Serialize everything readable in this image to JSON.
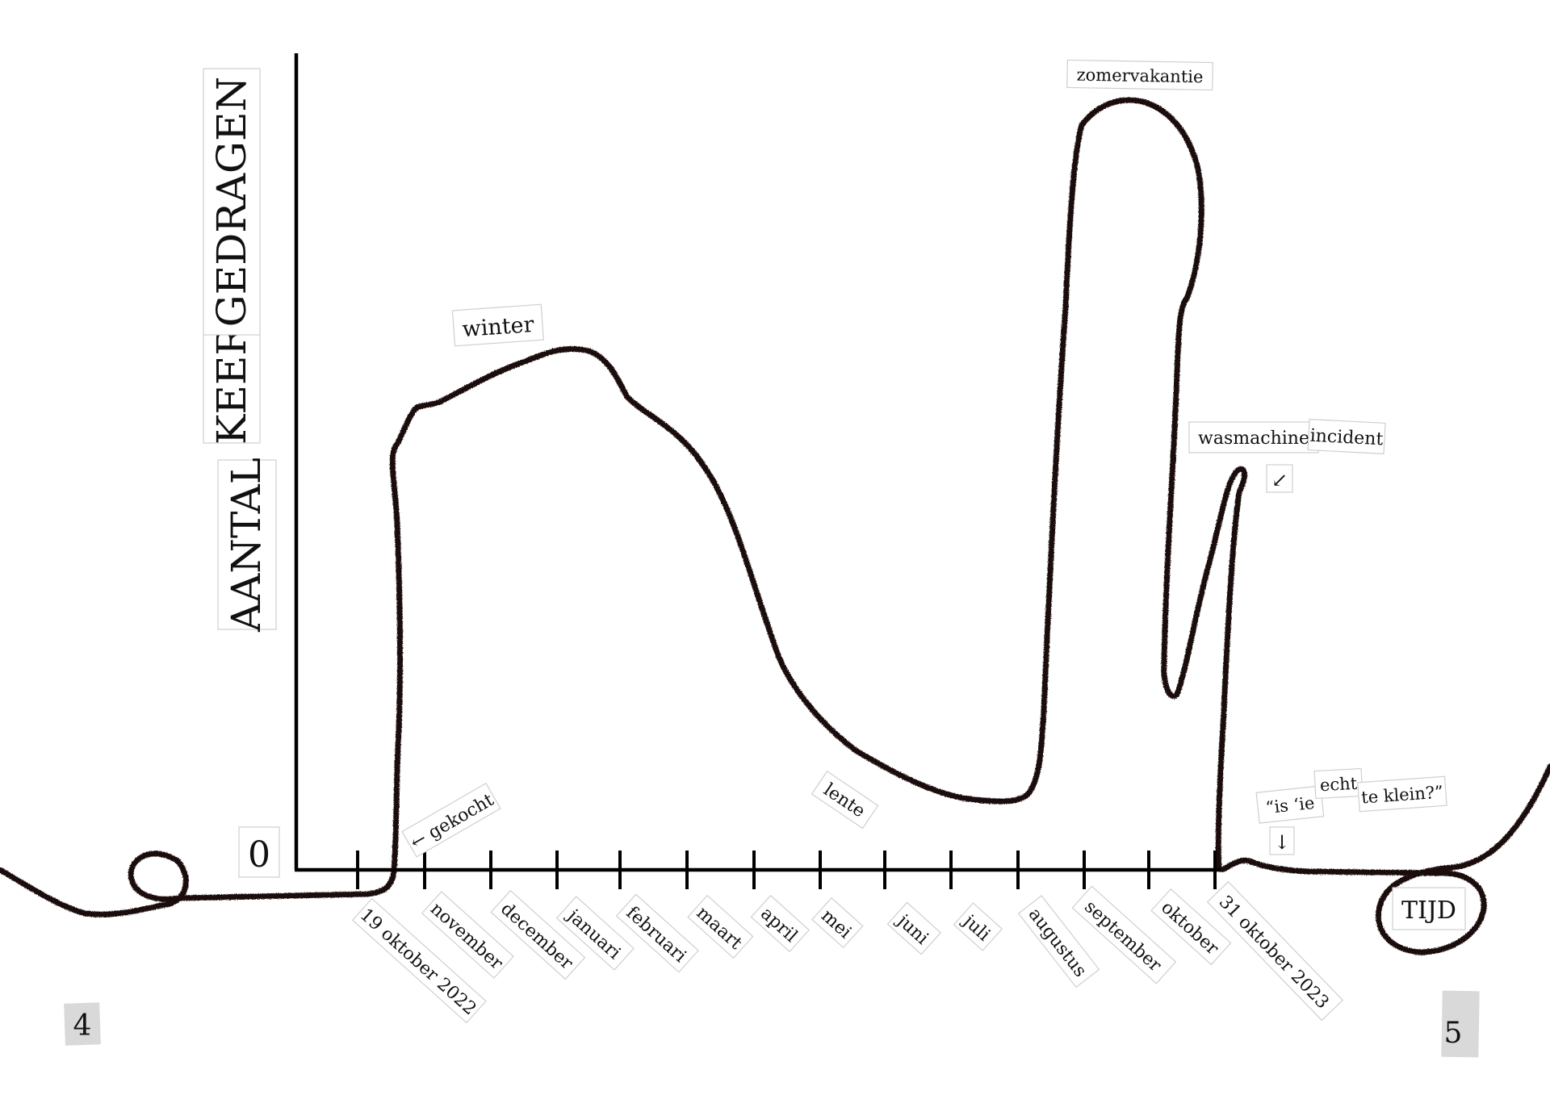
{
  "chart_data": {
    "type": "line",
    "ylabel_words": [
      "AANTAL",
      "KEER",
      "GEDRAGEN"
    ],
    "y_zero_label": "0",
    "xlabel": "TIJD",
    "x_tick_labels": [
      "19 oktober 2022",
      "november",
      "december",
      "januari",
      "februari",
      "maart",
      "april",
      "mei",
      "juni",
      "juli",
      "augustus",
      "september",
      "oktober",
      "31 oktober 2023"
    ],
    "annotations": {
      "bought": "← gekocht",
      "winter": "winter",
      "spring": "lente",
      "summer": "zomervakantie",
      "washer_1": "wasmachine",
      "washer_2": "incident",
      "washer_arrow": "↙",
      "question_1": "“is ‘ie",
      "question_2": "echt",
      "question_3": "te klein?”",
      "question_arrow": "↓"
    },
    "series": [
      {
        "x": [
          "19 oktober 2022",
          "november",
          "december",
          "januari",
          "februari",
          "maart",
          "april",
          "mei",
          "juni",
          "juli",
          "augustus",
          "september",
          "oktober",
          "31 oktober 2023"
        ],
        "values": [
          0,
          73,
          78,
          81,
          75,
          58,
          32,
          17,
          10,
          8,
          15,
          95,
          92,
          60
        ]
      }
    ],
    "ylim": [
      0,
      100
    ],
    "grid": false,
    "yarn_color": "#1a1010",
    "axis_color": "#000000"
  },
  "pages": {
    "left": "4",
    "right": "5"
  }
}
